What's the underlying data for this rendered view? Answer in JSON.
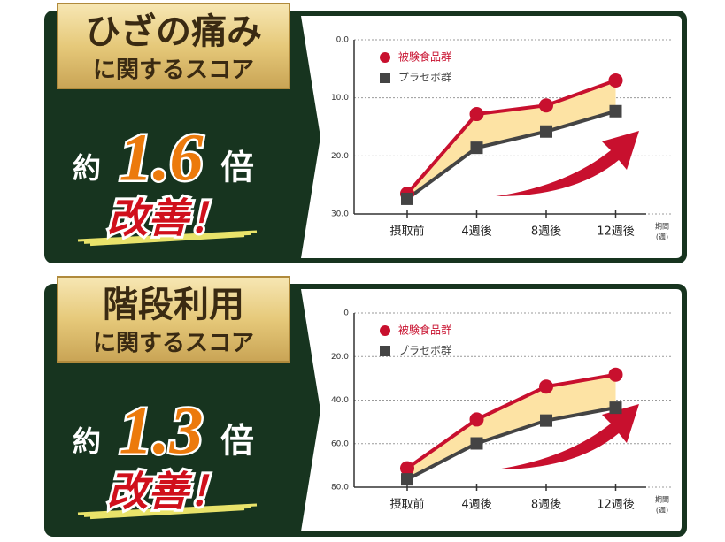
{
  "chart_data": [
    {
      "type": "line",
      "heading": [
        "ひざの痛み",
        "に関するスコア"
      ],
      "badge": {
        "prefix": "約",
        "ratio": 1.6,
        "suffix": "倍",
        "text": "改善！"
      },
      "categories": [
        "摂取前",
        "4週後",
        "8週後",
        "12週後"
      ],
      "x_label": [
        "期間",
        "(週)"
      ],
      "ylim": [
        0,
        30
      ],
      "y_reversed": true,
      "yticks": [
        {
          "value": 0,
          "label": "0.0"
        },
        {
          "value": 10,
          "label": "10.0"
        },
        {
          "value": 20,
          "label": "20.0"
        },
        {
          "value": 30,
          "label": "30.0"
        }
      ],
      "grid": true,
      "series": [
        {
          "name": "被験食品群",
          "color": "#c8102e",
          "marker": "circle",
          "values": [
            26.5,
            12.8,
            11.3,
            7.0
          ]
        },
        {
          "name": "プラセボ群",
          "color": "#444444",
          "marker": "square",
          "values": [
            27.4,
            18.6,
            15.8,
            12.3
          ]
        }
      ]
    },
    {
      "type": "line",
      "heading": [
        "階段利用",
        "に関するスコア"
      ],
      "badge": {
        "prefix": "約",
        "ratio": 1.3,
        "suffix": "倍",
        "text": "改善！"
      },
      "categories": [
        "摂取前",
        "4週後",
        "8週後",
        "12週後"
      ],
      "x_label": [
        "期間",
        "(週)"
      ],
      "ylim": [
        0,
        80
      ],
      "y_reversed": true,
      "yticks": [
        0,
        {
          "value": 20,
          "label": "20.0"
        },
        {
          "value": 40,
          "label": "40.0"
        },
        {
          "value": 60,
          "label": "60.0"
        },
        {
          "value": 80,
          "label": "80.0"
        }
      ],
      "grid": true,
      "series": [
        {
          "name": "被験食品群",
          "color": "#c8102e",
          "marker": "circle",
          "values": [
            71.3,
            48.9,
            33.8,
            28.3
          ]
        },
        {
          "name": "プラセボ群",
          "color": "#444444",
          "marker": "square",
          "values": [
            76.4,
            59.9,
            49.4,
            43.5
          ]
        }
      ]
    }
  ]
}
